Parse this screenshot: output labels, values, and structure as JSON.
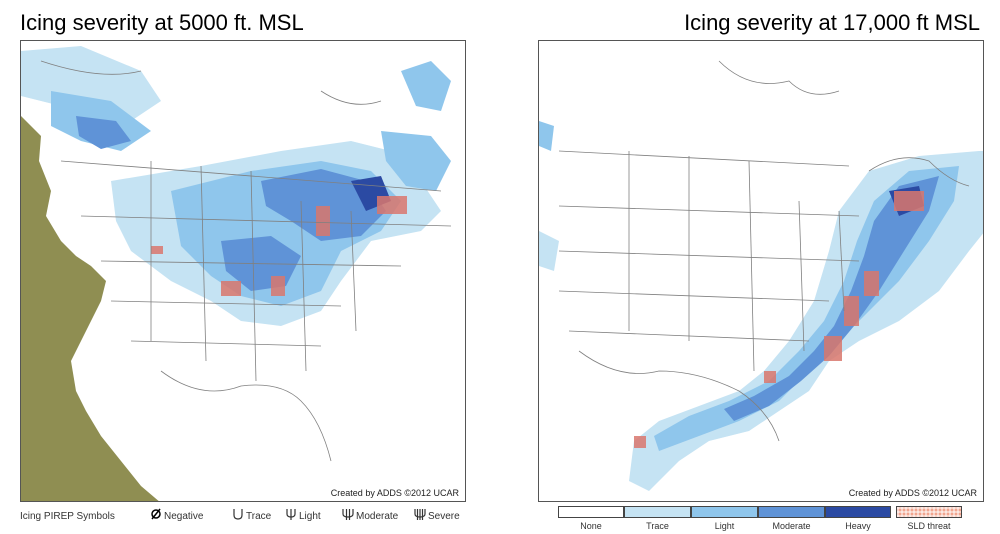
{
  "left_panel": {
    "title": "Icing severity at 5000 ft. MSL",
    "credit": "Created by ADDS ©2012 UCAR"
  },
  "right_panel": {
    "title": "Icing severity at 17,000 ft  MSL",
    "credit": "Created by ADDS ©2012 UCAR"
  },
  "pirep_legend": {
    "title": "Icing PIREP Symbols",
    "items": [
      {
        "label": "Negative",
        "icon": "negative-pirep-icon"
      },
      {
        "label": "Trace",
        "icon": "trace-pirep-icon"
      },
      {
        "label": "Light",
        "icon": "light-pirep-icon"
      },
      {
        "label": "Moderate",
        "icon": "moderate-pirep-icon"
      },
      {
        "label": "Severe",
        "icon": "severe-pirep-icon"
      }
    ]
  },
  "severity_legend": {
    "items": [
      {
        "label": "None",
        "color": "#ffffff"
      },
      {
        "label": "Trace",
        "color": "#c5e3f3"
      },
      {
        "label": "Light",
        "color": "#8fc6ec"
      },
      {
        "label": "Moderate",
        "color": "#5f93d7"
      },
      {
        "label": "Heavy",
        "color": "#2b4aa3"
      },
      {
        "label": "SLD threat",
        "color": "#f2a58f"
      }
    ]
  },
  "colors": {
    "terrain_mask": "#8f8e52",
    "border_lines": "#808080",
    "sld_threat": "#d9776d"
  }
}
